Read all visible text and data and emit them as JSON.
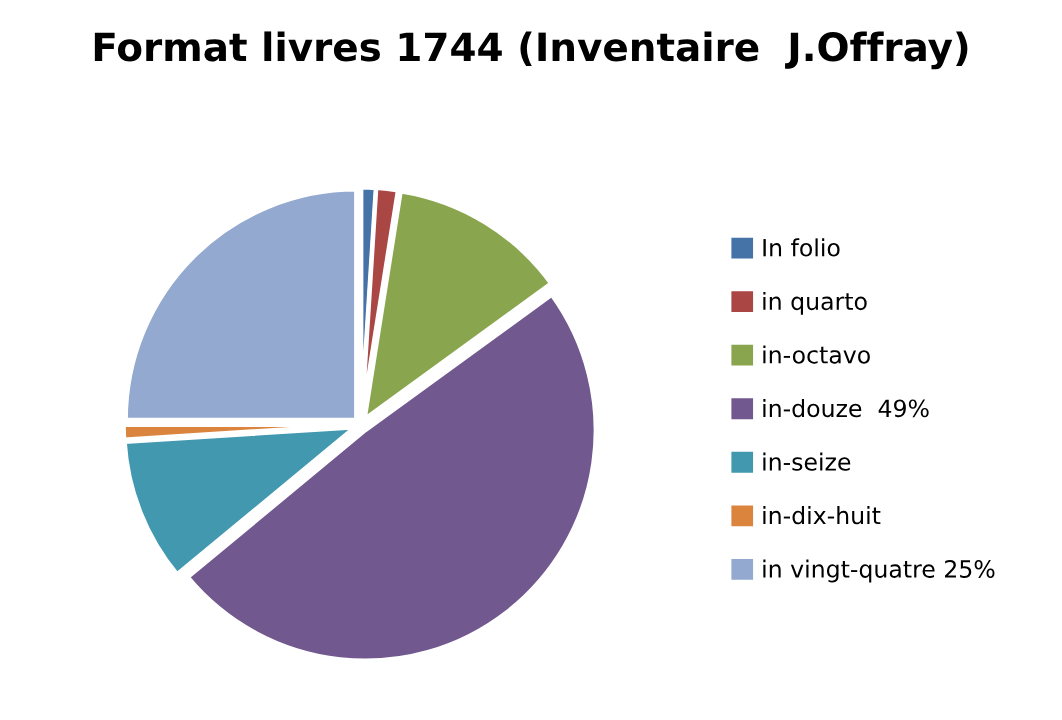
{
  "chart_data": {
    "type": "pie",
    "title": "Format livres 1744 (Inventaire  J.Offray)",
    "categories": [
      "In folio",
      "in quarto",
      "in-octavo",
      "in-douze  49%",
      "in-seize",
      "in-dix-huit",
      "in vingt-quatre 25%"
    ],
    "values": [
      1,
      1.5,
      12.5,
      49,
      10,
      1,
      25
    ],
    "colors": [
      "#4572a7",
      "#aa4643",
      "#89a54e",
      "#71588f",
      "#4198af",
      "#db843d",
      "#93a9cf"
    ],
    "legend": "right"
  }
}
